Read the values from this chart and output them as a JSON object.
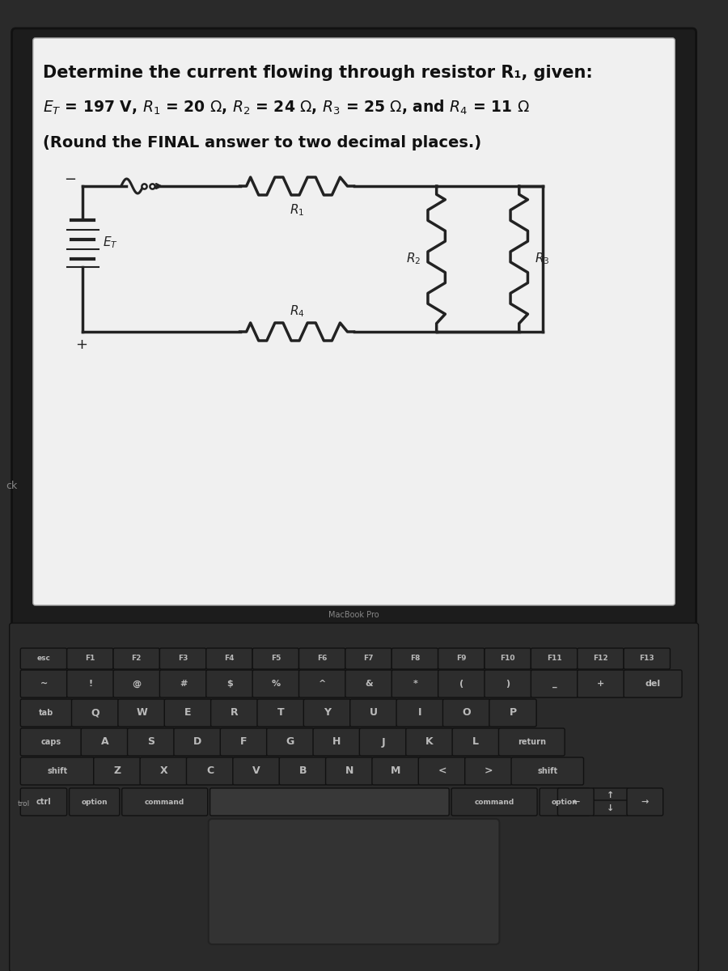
{
  "title_line1": "Determine the current flowing through resistor R₁, given:",
  "title_line2": "Eₜ = 197 V, R₁ = 20 Ω, R₂ = 24 Ω, R₃ = 25 Ω, and R₄ = 11 Ω",
  "title_line3": "(Round the FINAL answer to two decimal places.)",
  "bg_laptop": "#2a2a2a",
  "screen_bg": "#f0f0f0",
  "circuit_color": "#222222",
  "key_color": "#2d2d2d",
  "key_text": "#bbbbbb",
  "bezel_color": "#1c1c1c"
}
